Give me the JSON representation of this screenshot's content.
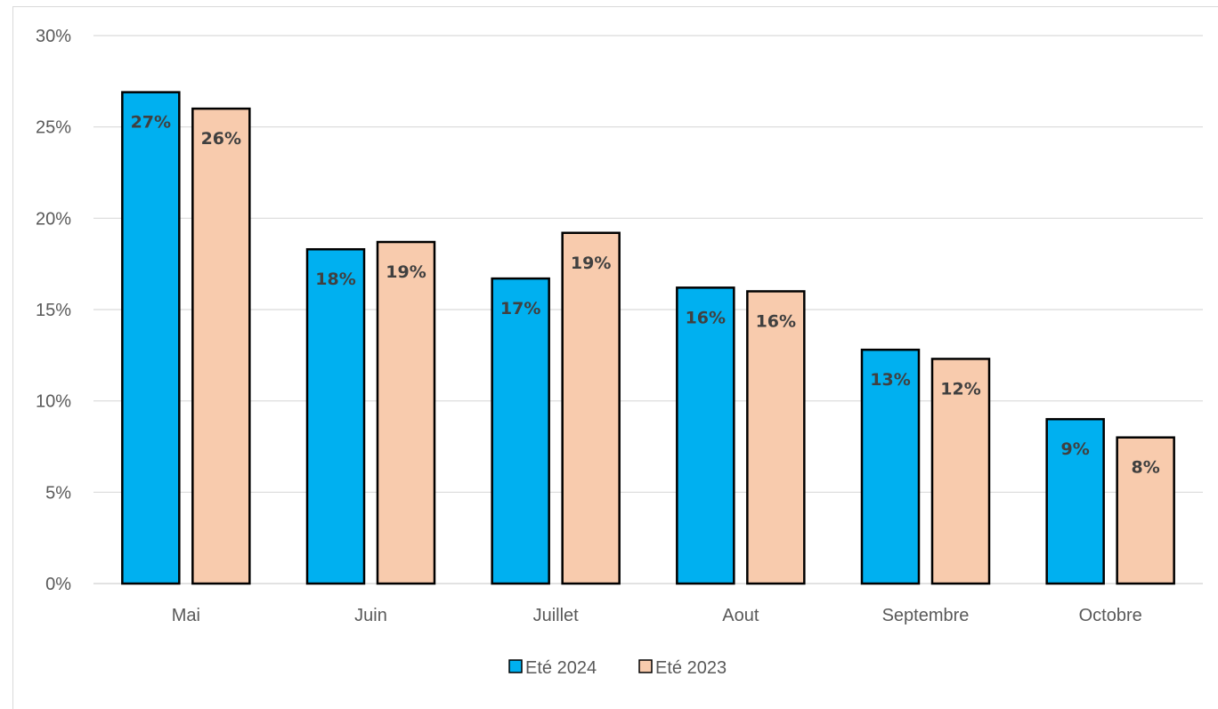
{
  "chart_data": {
    "type": "bar",
    "categories": [
      "Mai",
      "Juin",
      "Juillet",
      "Aout",
      "Septembre",
      "Octobre"
    ],
    "series": [
      {
        "name": "Eté 2024",
        "color": "#00b0f0",
        "values": [
          26.9,
          18.3,
          16.7,
          16.2,
          12.8,
          9.0
        ],
        "labels": [
          "27%",
          "18%",
          "17%",
          "16%",
          "13%",
          "9%"
        ]
      },
      {
        "name": "Eté 2023",
        "color": "#f8cbad",
        "values": [
          26.0,
          18.7,
          19.2,
          16.0,
          12.3,
          8.0
        ],
        "labels": [
          "26%",
          "19%",
          "19%",
          "16%",
          "12%",
          "8%"
        ]
      }
    ],
    "ylim": [
      0,
      30
    ],
    "yticks": [
      0,
      5,
      10,
      15,
      20,
      25,
      30
    ],
    "ytick_labels": [
      "0%",
      "5%",
      "10%",
      "15%",
      "20%",
      "25%",
      "30%"
    ],
    "title": "",
    "xlabel": "",
    "ylabel": "",
    "grid": true,
    "gridline_color": "#d9d9d9",
    "bar_border_color": "#000000",
    "legend_placement": "bottom"
  }
}
